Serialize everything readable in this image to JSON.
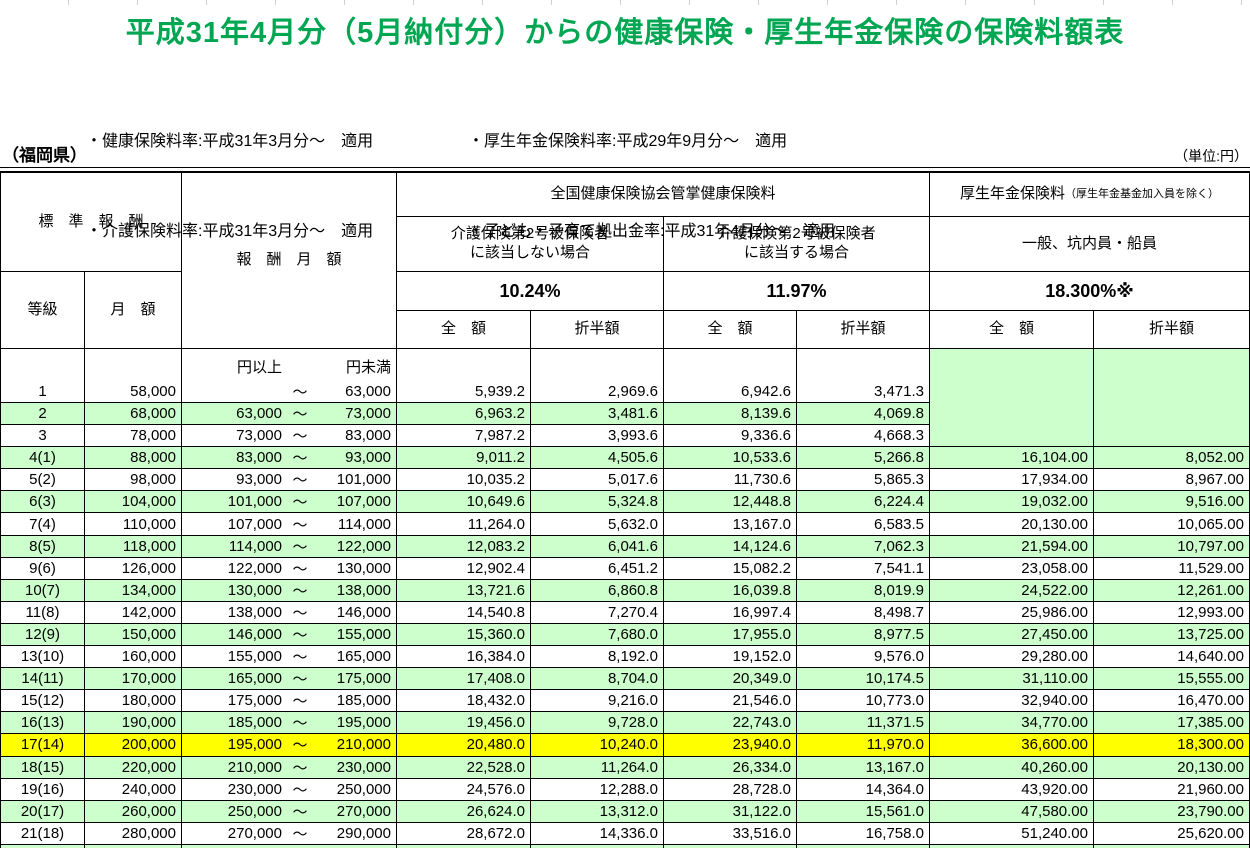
{
  "title": "平成31年4月分（5月納付分）からの健康保険・厚生年金保険の保険料額表",
  "notes": {
    "left": [
      "・健康保険料率:平成31年3月分～　適用",
      "・介護保険料率:平成31年3月分～　適用"
    ],
    "right": [
      "・厚生年金保険料率:平成29年9月分～　適用",
      "・子ども・子育て拠出金率:平成31年4月分～　適用"
    ]
  },
  "region": "（福岡県）",
  "unit": "（単位:円）",
  "header": {
    "standard_reward": "標　準　報　酬",
    "grade": "等級",
    "monthly": "月　額",
    "monthly_reward": "報　酬　月　額",
    "kenpo_group": "全国健康保険協会管掌健康保険料",
    "no_care_line1": "介護保険第2号被保険者",
    "no_care_line2": "に該当しない場合",
    "care_line1": "介護保険第2号被保険者",
    "care_line2": "に該当する場合",
    "pension_group_main": "厚生年金保険料",
    "pension_group_sub": "（厚生年金基金加入員を除く）",
    "pension_category": "一般、坑内員・船員",
    "rate_no_care": "10.24%",
    "rate_care": "11.97%",
    "rate_pension": "18.300%※",
    "full_amount": "全　額",
    "half_amount": "折半額",
    "yen_over": "円以上",
    "yen_under": "円未満",
    "tilde": "～"
  },
  "colors": {
    "title_green": "#00a651",
    "row_green": "#ccffcc",
    "row_yellow": "#ffff00",
    "row_white": "#ffffff",
    "border": "#000000"
  },
  "rows": [
    {
      "grade": "1",
      "monthly": "58,000",
      "low": "",
      "high": "63,000",
      "hf": "5,939.2",
      "hh": "2,969.6",
      "kf": "6,942.6",
      "kh": "3,471.3",
      "pf": "",
      "ph": "",
      "bg": "white"
    },
    {
      "grade": "2",
      "monthly": "68,000",
      "low": "63,000",
      "high": "73,000",
      "hf": "6,963.2",
      "hh": "3,481.6",
      "kf": "8,139.6",
      "kh": "4,069.8",
      "pf": "",
      "ph": "",
      "bg": "green"
    },
    {
      "grade": "3",
      "monthly": "78,000",
      "low": "73,000",
      "high": "83,000",
      "hf": "7,987.2",
      "hh": "3,993.6",
      "kf": "9,336.6",
      "kh": "4,668.3",
      "pf": "",
      "ph": "",
      "bg": "white"
    },
    {
      "grade": "4(1)",
      "monthly": "88,000",
      "low": "83,000",
      "high": "93,000",
      "hf": "9,011.2",
      "hh": "4,505.6",
      "kf": "10,533.6",
      "kh": "5,266.8",
      "pf": "16,104.00",
      "ph": "8,052.00",
      "bg": "green"
    },
    {
      "grade": "5(2)",
      "monthly": "98,000",
      "low": "93,000",
      "high": "101,000",
      "hf": "10,035.2",
      "hh": "5,017.6",
      "kf": "11,730.6",
      "kh": "5,865.3",
      "pf": "17,934.00",
      "ph": "8,967.00",
      "bg": "white"
    },
    {
      "grade": "6(3)",
      "monthly": "104,000",
      "low": "101,000",
      "high": "107,000",
      "hf": "10,649.6",
      "hh": "5,324.8",
      "kf": "12,448.8",
      "kh": "6,224.4",
      "pf": "19,032.00",
      "ph": "9,516.00",
      "bg": "green"
    },
    {
      "grade": "7(4)",
      "monthly": "110,000",
      "low": "107,000",
      "high": "114,000",
      "hf": "11,264.0",
      "hh": "5,632.0",
      "kf": "13,167.0",
      "kh": "6,583.5",
      "pf": "20,130.00",
      "ph": "10,065.00",
      "bg": "white"
    },
    {
      "grade": "8(5)",
      "monthly": "118,000",
      "low": "114,000",
      "high": "122,000",
      "hf": "12,083.2",
      "hh": "6,041.6",
      "kf": "14,124.6",
      "kh": "7,062.3",
      "pf": "21,594.00",
      "ph": "10,797.00",
      "bg": "green"
    },
    {
      "grade": "9(6)",
      "monthly": "126,000",
      "low": "122,000",
      "high": "130,000",
      "hf": "12,902.4",
      "hh": "6,451.2",
      "kf": "15,082.2",
      "kh": "7,541.1",
      "pf": "23,058.00",
      "ph": "11,529.00",
      "bg": "white"
    },
    {
      "grade": "10(7)",
      "monthly": "134,000",
      "low": "130,000",
      "high": "138,000",
      "hf": "13,721.6",
      "hh": "6,860.8",
      "kf": "16,039.8",
      "kh": "8,019.9",
      "pf": "24,522.00",
      "ph": "12,261.00",
      "bg": "green"
    },
    {
      "grade": "11(8)",
      "monthly": "142,000",
      "low": "138,000",
      "high": "146,000",
      "hf": "14,540.8",
      "hh": "7,270.4",
      "kf": "16,997.4",
      "kh": "8,498.7",
      "pf": "25,986.00",
      "ph": "12,993.00",
      "bg": "white"
    },
    {
      "grade": "12(9)",
      "monthly": "150,000",
      "low": "146,000",
      "high": "155,000",
      "hf": "15,360.0",
      "hh": "7,680.0",
      "kf": "17,955.0",
      "kh": "8,977.5",
      "pf": "27,450.00",
      "ph": "13,725.00",
      "bg": "green"
    },
    {
      "grade": "13(10)",
      "monthly": "160,000",
      "low": "155,000",
      "high": "165,000",
      "hf": "16,384.0",
      "hh": "8,192.0",
      "kf": "19,152.0",
      "kh": "9,576.0",
      "pf": "29,280.00",
      "ph": "14,640.00",
      "bg": "white"
    },
    {
      "grade": "14(11)",
      "monthly": "170,000",
      "low": "165,000",
      "high": "175,000",
      "hf": "17,408.0",
      "hh": "8,704.0",
      "kf": "20,349.0",
      "kh": "10,174.5",
      "pf": "31,110.00",
      "ph": "15,555.00",
      "bg": "green"
    },
    {
      "grade": "15(12)",
      "monthly": "180,000",
      "low": "175,000",
      "high": "185,000",
      "hf": "18,432.0",
      "hh": "9,216.0",
      "kf": "21,546.0",
      "kh": "10,773.0",
      "pf": "32,940.00",
      "ph": "16,470.00",
      "bg": "white"
    },
    {
      "grade": "16(13)",
      "monthly": "190,000",
      "low": "185,000",
      "high": "195,000",
      "hf": "19,456.0",
      "hh": "9,728.0",
      "kf": "22,743.0",
      "kh": "11,371.5",
      "pf": "34,770.00",
      "ph": "17,385.00",
      "bg": "green"
    },
    {
      "grade": "17(14)",
      "monthly": "200,000",
      "low": "195,000",
      "high": "210,000",
      "hf": "20,480.0",
      "hh": "10,240.0",
      "kf": "23,940.0",
      "kh": "11,970.0",
      "pf": "36,600.00",
      "ph": "18,300.00",
      "bg": "yellow"
    },
    {
      "grade": "18(15)",
      "monthly": "220,000",
      "low": "210,000",
      "high": "230,000",
      "hf": "22,528.0",
      "hh": "11,264.0",
      "kf": "26,334.0",
      "kh": "13,167.0",
      "pf": "40,260.00",
      "ph": "20,130.00",
      "bg": "green"
    },
    {
      "grade": "19(16)",
      "monthly": "240,000",
      "low": "230,000",
      "high": "250,000",
      "hf": "24,576.0",
      "hh": "12,288.0",
      "kf": "28,728.0",
      "kh": "14,364.0",
      "pf": "43,920.00",
      "ph": "21,960.00",
      "bg": "white"
    },
    {
      "grade": "20(17)",
      "monthly": "260,000",
      "low": "250,000",
      "high": "270,000",
      "hf": "26,624.0",
      "hh": "13,312.0",
      "kf": "31,122.0",
      "kh": "15,561.0",
      "pf": "47,580.00",
      "ph": "23,790.00",
      "bg": "green"
    },
    {
      "grade": "21(18)",
      "monthly": "280,000",
      "low": "270,000",
      "high": "290,000",
      "hf": "28,672.0",
      "hh": "14,336.0",
      "kf": "33,516.0",
      "kh": "16,758.0",
      "pf": "51,240.00",
      "ph": "25,620.00",
      "bg": "white"
    }
  ]
}
